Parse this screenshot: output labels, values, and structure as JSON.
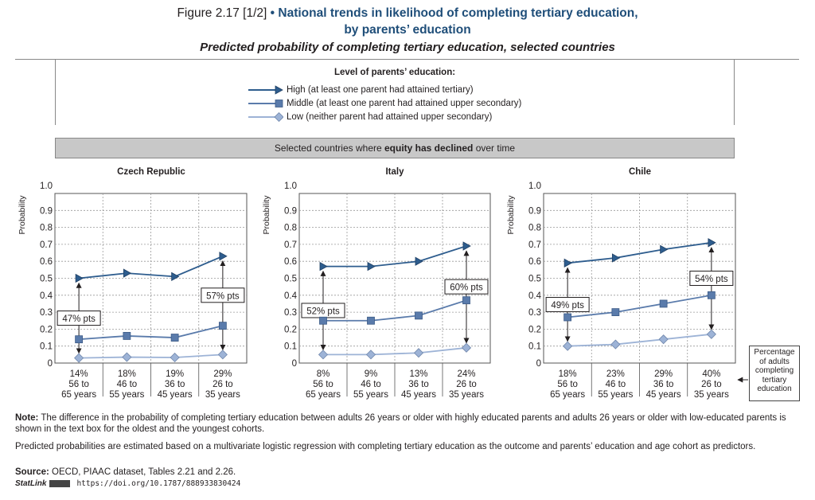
{
  "header": {
    "figure_label": "Figure 2.17 [1/2]",
    "title_line1": "National trends in likelihood of completing tertiary education,",
    "title_line2": "by parents’ education",
    "subtitle": "Predicted probability of completing tertiary education, selected countries"
  },
  "legend": {
    "title": "Level of parents’ education:",
    "items": [
      {
        "label": "High (at least one parent had attained tertiary)",
        "marker": "triangle-right",
        "color": "#2e5d8e"
      },
      {
        "label": "Middle (at least one parent had attained upper secondary)",
        "marker": "square",
        "color": "#5a7bab"
      },
      {
        "label": "Low (neither parent had attained upper secondary)",
        "marker": "diamond",
        "color": "#9db3d6"
      }
    ]
  },
  "banner": {
    "prefix": "Selected countries where ",
    "bold": "equity has declined",
    "suffix": " over time"
  },
  "colors": {
    "high": "#2e5d8e",
    "middle": "#5a7bab",
    "low": "#9db3d6",
    "grid": "#999999"
  },
  "chart_data": [
    {
      "type": "line",
      "title": "Czech Republic",
      "ylabel": "Probability",
      "ylim": [
        0,
        1.0
      ],
      "yticks": [
        "0",
        "0.1",
        "0.2",
        "0.3",
        "0.4",
        "0.5",
        "0.6",
        "0.7",
        "0.8",
        "0.9",
        "1.0"
      ],
      "categories": [
        {
          "pct": "14%",
          "line1": "56 to",
          "line2": "65 years"
        },
        {
          "pct": "18%",
          "line1": "46 to",
          "line2": "55 years"
        },
        {
          "pct": "19%",
          "line1": "36 to",
          "line2": "45 years"
        },
        {
          "pct": "29%",
          "line1": "26 to",
          "line2": "35 years"
        }
      ],
      "series": [
        {
          "key": "high",
          "values": [
            0.5,
            0.53,
            0.51,
            0.63
          ]
        },
        {
          "key": "middle",
          "values": [
            0.14,
            0.16,
            0.15,
            0.22
          ]
        },
        {
          "key": "low",
          "values": [
            0.03,
            0.035,
            0.033,
            0.05
          ]
        }
      ],
      "gap_labels": [
        "47% pts",
        "57% pts"
      ]
    },
    {
      "type": "line",
      "title": "Italy",
      "ylabel": "Probability",
      "ylim": [
        0,
        1.0
      ],
      "yticks": [
        "0",
        "0.1",
        "0.2",
        "0.3",
        "0.4",
        "0.5",
        "0.6",
        "0.7",
        "0.8",
        "0.9",
        "1.0"
      ],
      "categories": [
        {
          "pct": "8%",
          "line1": "56 to",
          "line2": "65 years"
        },
        {
          "pct": "9%",
          "line1": "46 to",
          "line2": "55 years"
        },
        {
          "pct": "13%",
          "line1": "36 to",
          "line2": "45 years"
        },
        {
          "pct": "24%",
          "line1": "26 to",
          "line2": "35 years"
        }
      ],
      "series": [
        {
          "key": "high",
          "values": [
            0.57,
            0.57,
            0.6,
            0.69
          ]
        },
        {
          "key": "middle",
          "values": [
            0.25,
            0.25,
            0.28,
            0.37
          ]
        },
        {
          "key": "low",
          "values": [
            0.05,
            0.05,
            0.06,
            0.09
          ]
        }
      ],
      "gap_labels": [
        "52% pts",
        "60% pts"
      ]
    },
    {
      "type": "line",
      "title": "Chile",
      "ylabel": "Probability",
      "ylim": [
        0,
        1.0
      ],
      "yticks": [
        "0",
        "0.1",
        "0.2",
        "0.3",
        "0.4",
        "0.5",
        "0.6",
        "0.7",
        "0.8",
        "0.9",
        "1.0"
      ],
      "categories": [
        {
          "pct": "18%",
          "line1": "56 to",
          "line2": "65 years"
        },
        {
          "pct": "23%",
          "line1": "46 to",
          "line2": "55 years"
        },
        {
          "pct": "29%",
          "line1": "36 to",
          "line2": "45 years"
        },
        {
          "pct": "40%",
          "line1": "26 to",
          "line2": "35 years"
        }
      ],
      "series": [
        {
          "key": "high",
          "values": [
            0.59,
            0.62,
            0.67,
            0.71
          ]
        },
        {
          "key": "middle",
          "values": [
            0.27,
            0.3,
            0.35,
            0.4
          ]
        },
        {
          "key": "low",
          "values": [
            0.1,
            0.11,
            0.14,
            0.17
          ]
        }
      ],
      "gap_labels": [
        "49% pts",
        "54% pts"
      ]
    }
  ],
  "side_note": "Percentage of adults completing tertiary education",
  "notes": {
    "note_label": "Note:",
    "note_text": " The difference in the probability of completing tertiary education between adults 26 years or older with highly educated parents and adults 26 years or older with low-educated parents is shown in the text box for the oldest and the youngest cohorts.",
    "method_text": "Predicted probabilities are estimated based on a multivariate logistic regression with completing tertiary education as the outcome and parents’ education and age cohort as predictors.",
    "source_label": "Source:",
    "source_text": " OECD, PIAAC dataset, Tables 2.21 and 2.26.",
    "statlink_label": "StatLink",
    "statlink_url": "https://doi.org/10.1787/888933830424"
  }
}
